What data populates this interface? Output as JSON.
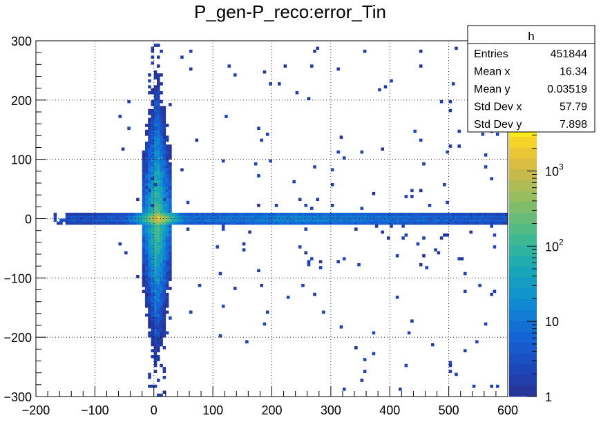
{
  "chart_data": {
    "type": "heatmap",
    "title": "P_gen-P_reco:error_Tin",
    "xlabel": "",
    "ylabel": "",
    "xlim": [
      -200,
      600
    ],
    "ylim": [
      -300,
      300
    ],
    "logz": true,
    "zlim": [
      1,
      4000
    ],
    "grid": true,
    "x_ticks": [
      "−200",
      "−100",
      "0",
      "100",
      "200",
      "300",
      "400",
      "500",
      "600"
    ],
    "y_ticks": [
      "300",
      "200",
      "100",
      "0",
      "−100",
      "−200",
      "−300"
    ],
    "z_ticks": [
      {
        "base": "1",
        "exp": "",
        "value": 1
      },
      {
        "base": "10",
        "exp": "",
        "value": 10
      },
      {
        "base": "10",
        "exp": "2",
        "value": 100
      },
      {
        "base": "10",
        "exp": "3",
        "value": 1000
      }
    ],
    "stats": {
      "name": "h",
      "rows": [
        {
          "label": "Entries",
          "value": "451844"
        },
        {
          "label": "Mean x",
          "value": "16.34"
        },
        {
          "label": "Mean y",
          "value": "0.03519"
        },
        {
          "label": "Std Dev x",
          "value": "57.79"
        },
        {
          "label": "Std Dev y",
          "value": "7.898"
        }
      ]
    }
  }
}
